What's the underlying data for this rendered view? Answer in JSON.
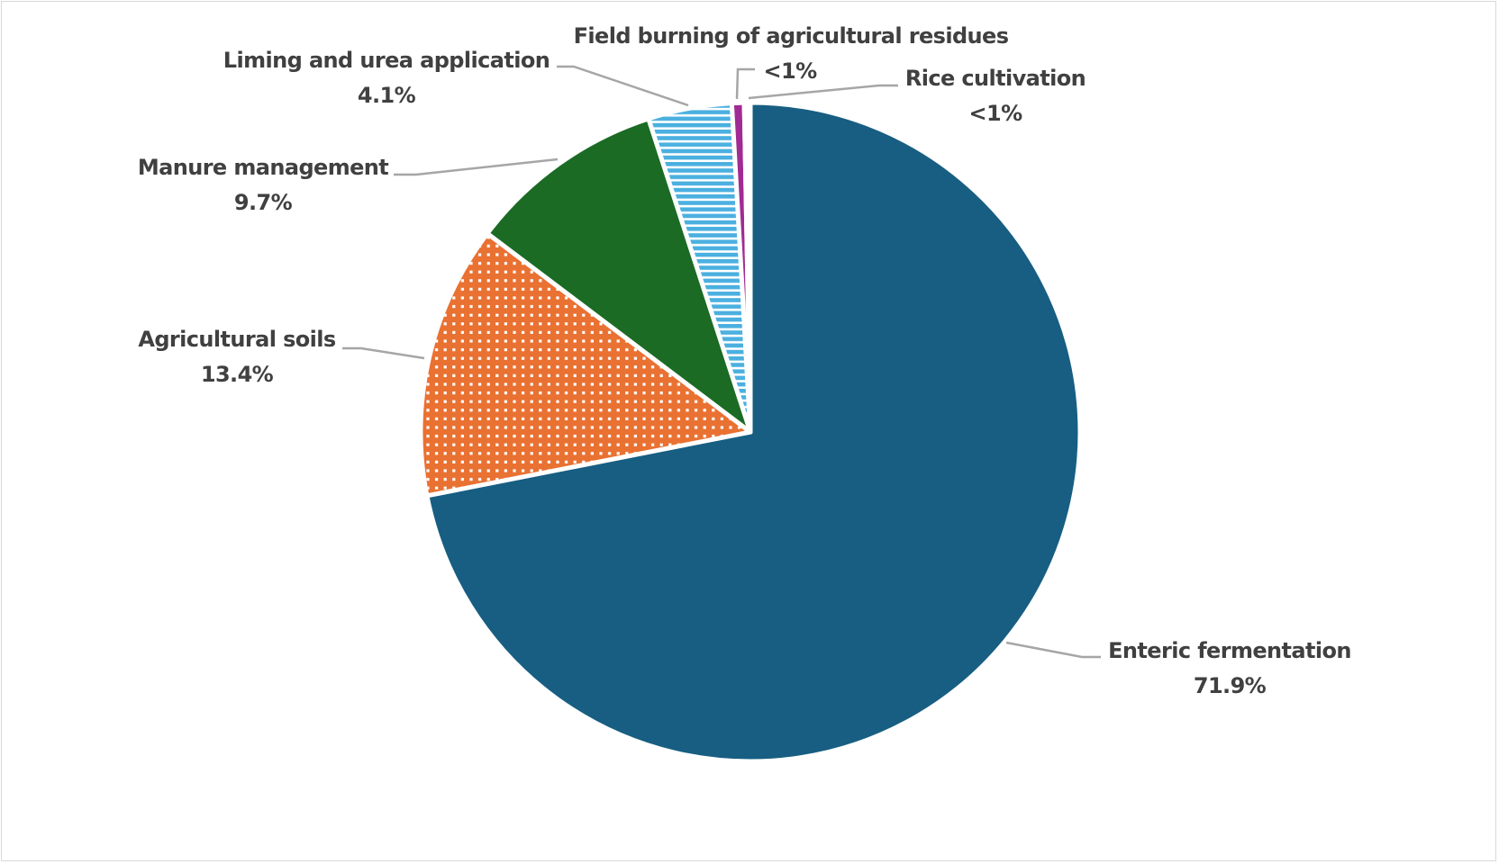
{
  "chart_data": {
    "type": "pie",
    "title": "",
    "start_angle": "12 o'clock",
    "direction": "clockwise",
    "slices": [
      {
        "label": "Enteric fermentation",
        "value": 71.9,
        "display": "71.9%",
        "color": "#175E82",
        "pattern": "solid"
      },
      {
        "label": "Agricultural soils",
        "value": 13.4,
        "display": "13.4%",
        "color": "#E97132",
        "pattern": "white-dots"
      },
      {
        "label": "Manure management",
        "value": 9.7,
        "display": "9.7%",
        "color": "#1B6B24",
        "pattern": "solid"
      },
      {
        "label": "Liming and urea application",
        "value": 4.1,
        "display": "4.1%",
        "color": "#4BB0E0",
        "pattern": "horizontal-stripes"
      },
      {
        "label": "Field burning of agricultural residues",
        "value": 0.6,
        "display": "<1%",
        "color": "#A02B93",
        "pattern": "solid"
      },
      {
        "label": "Rice cultivation",
        "value": 0.3,
        "display": "<1%",
        "color": "#FFFFFF",
        "pattern": "solid"
      }
    ],
    "legend": "none",
    "data_labels": "outside with leader lines"
  }
}
